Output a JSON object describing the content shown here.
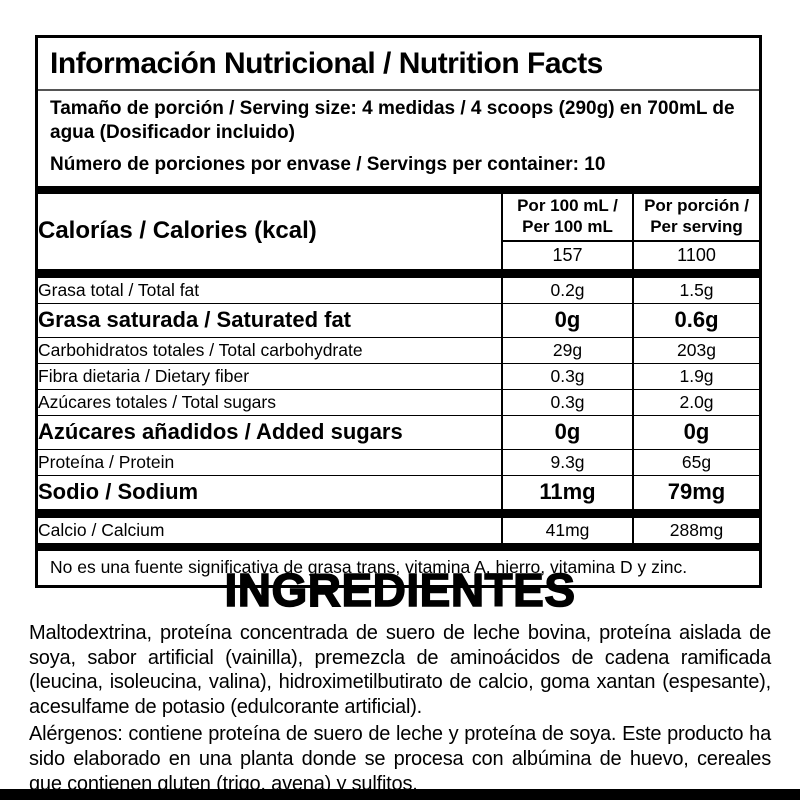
{
  "header": {
    "title": "Información Nutricional / Nutrition Facts",
    "serving_size": "Tamaño de porción / Serving size: 4 medidas / 4 scoops (290g) en 700mL de agua (Dosificador incluido)",
    "servings_per_container": "Número de porciones por envase / Servings per container: 10"
  },
  "table": {
    "calories_label": "Calorías / Calories (kcal)",
    "columns": {
      "per100": "Por 100 mL / Per 100 mL",
      "per_serving": "Por porción / Per serving"
    },
    "calories": {
      "per100": "157",
      "per_serving": "1100"
    },
    "rows": [
      {
        "label": "Grasa total / Total fat",
        "per100": "0.2g",
        "per_serving": "1.5g"
      },
      {
        "label": "Grasa saturada / Saturated fat",
        "per100": "0g",
        "per_serving": "0.6g"
      },
      {
        "label": "Carbohidratos totales / Total carbohydrate",
        "per100": "29g",
        "per_serving": "203g"
      },
      {
        "label": "Fibra dietaria / Dietary fiber",
        "per100": "0.3g",
        "per_serving": "1.9g"
      },
      {
        "label": "Azúcares totales / Total sugars",
        "per100": "0.3g",
        "per_serving": "2.0g"
      },
      {
        "label": "Azúcares añadidos / Added sugars",
        "per100": "0g",
        "per_serving": "0g"
      },
      {
        "label": "Proteína / Protein",
        "per100": "9.3g",
        "per_serving": "65g"
      },
      {
        "label": "Sodio / Sodium",
        "per100": "11mg",
        "per_serving": "79mg"
      },
      {
        "label": "Calcio / Calcium",
        "per100": "41mg",
        "per_serving": "288mg"
      }
    ],
    "footnote": "No es una fuente significativa de grasa trans, vitamina  A, hierro, vitamina D y zinc."
  },
  "ingredients": {
    "heading": "INGREDIENTES",
    "body": "Maltodextrina, proteína concentrada de suero de leche bovina, proteína aislada de soya, sabor artificial (vainilla), premezcla de aminoácidos de cadena ramificada (leucina, isoleucina, valina), hidroximetilbutirato de calcio, goma xantan (espesante), acesulfame de potasio (edulcorante artificial).",
    "allergens": "Alérgenos: contiene proteína de suero de leche y proteína de soya. Este producto ha sido elaborado en una planta donde se procesa con albúmina de huevo, cereales que contienen gluten (trigo, avena) y sulfitos."
  },
  "colors": {
    "ink": "#000000",
    "background": "#ffffff"
  }
}
